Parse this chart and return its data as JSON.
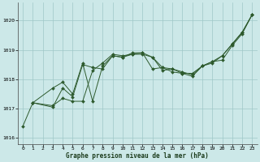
{
  "title": "Graphe pression niveau de la mer (hPa)",
  "bg_color": "#cce8e8",
  "grid_color": "#9fc8c8",
  "line_color": "#2d5a2d",
  "xlim": [
    -0.5,
    23.5
  ],
  "ylim": [
    1015.8,
    1020.6
  ],
  "yticks": [
    1016,
    1017,
    1018,
    1019,
    1020
  ],
  "xticks": [
    0,
    1,
    2,
    3,
    4,
    5,
    6,
    7,
    8,
    9,
    10,
    11,
    12,
    13,
    14,
    15,
    16,
    17,
    18,
    19,
    20,
    21,
    22,
    23
  ],
  "line1_x": [
    0,
    1,
    3,
    4,
    5,
    6,
    7,
    8,
    9,
    10,
    11,
    12,
    13,
    14,
    15,
    16,
    17,
    18,
    19,
    20,
    21,
    22,
    23
  ],
  "line1_y": [
    1016.4,
    1017.2,
    1017.1,
    1017.35,
    1017.25,
    1017.25,
    1018.3,
    1018.55,
    1018.85,
    1018.8,
    1018.85,
    1018.85,
    1018.75,
    1018.3,
    1018.35,
    1018.2,
    1018.2,
    1018.45,
    1018.6,
    1018.65,
    1019.15,
    1019.55,
    1020.2
  ],
  "line2_x": [
    1,
    3,
    4,
    5,
    6,
    7,
    8,
    9,
    10,
    11,
    12,
    13,
    14,
    15,
    16,
    17,
    18,
    19,
    20,
    21,
    22,
    23
  ],
  "line2_y": [
    1017.2,
    1017.05,
    1017.7,
    1017.4,
    1018.5,
    1018.4,
    1018.35,
    1018.8,
    1018.75,
    1018.85,
    1018.9,
    1018.75,
    1018.4,
    1018.35,
    1018.25,
    1018.15,
    1018.45,
    1018.55,
    1018.8,
    1019.2,
    1019.6,
    1020.2
  ],
  "line3_x": [
    1,
    3,
    4,
    5,
    6,
    7,
    8,
    9,
    10,
    11,
    12,
    13,
    14,
    15,
    16,
    17,
    18,
    19,
    20,
    21,
    22,
    23
  ],
  "line3_y": [
    1017.2,
    1017.7,
    1017.9,
    1017.5,
    1018.55,
    1017.25,
    1018.45,
    1018.8,
    1018.75,
    1018.9,
    1018.9,
    1018.35,
    1018.4,
    1018.25,
    1018.2,
    1018.1,
    1018.45,
    1018.6,
    1018.8,
    1019.2,
    1019.6,
    1020.2
  ]
}
